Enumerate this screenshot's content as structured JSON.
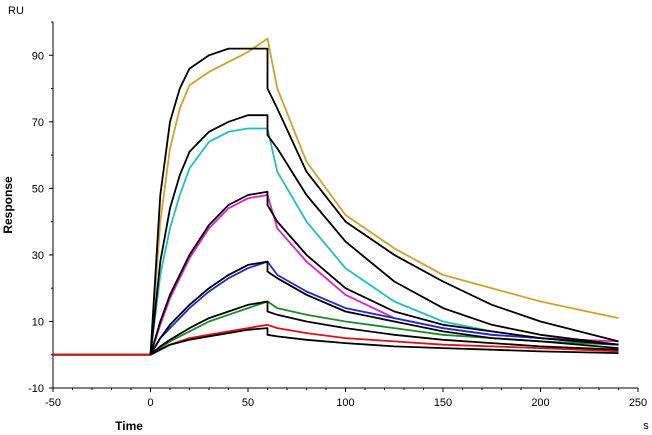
{
  "chart_data": {
    "type": "line",
    "title": "",
    "xlabel": "Time",
    "ylabel": "Response",
    "x_unit": "s",
    "y_unit": "RU",
    "xlim": [
      -50,
      250
    ],
    "ylim": [
      -10,
      100
    ],
    "x_ticks": [
      -50,
      0,
      50,
      100,
      150,
      200,
      250
    ],
    "y_ticks": [
      -10,
      10,
      30,
      50,
      70,
      90
    ],
    "grid": false,
    "legend": "none",
    "colors": {
      "gold": "#d4a02a",
      "cyan": "#20c0c0",
      "magenta": "#e020d0",
      "blue": "#1a2ad0",
      "green": "#1a8a2a",
      "red": "#e01010",
      "fit": "#000000"
    },
    "series": [
      {
        "color": "#d4a02a",
        "values": [
          [
            -50,
            0
          ],
          [
            0,
            0
          ],
          [
            5,
            40
          ],
          [
            10,
            62
          ],
          [
            15,
            74
          ],
          [
            20,
            81
          ],
          [
            30,
            85
          ],
          [
            40,
            88
          ],
          [
            50,
            91
          ],
          [
            60,
            95
          ],
          [
            65,
            80
          ],
          [
            80,
            58
          ],
          [
            100,
            42
          ],
          [
            125,
            32
          ],
          [
            150,
            24
          ],
          [
            175,
            20
          ],
          [
            200,
            16
          ],
          [
            240,
            11
          ]
        ]
      },
      {
        "color": "#20c0c0",
        "values": [
          [
            -50,
            0
          ],
          [
            0,
            0
          ],
          [
            5,
            24
          ],
          [
            10,
            38
          ],
          [
            15,
            48
          ],
          [
            20,
            56
          ],
          [
            30,
            64
          ],
          [
            40,
            67
          ],
          [
            50,
            68
          ],
          [
            60,
            68
          ],
          [
            65,
            55
          ],
          [
            80,
            40
          ],
          [
            100,
            26
          ],
          [
            125,
            16
          ],
          [
            150,
            10
          ],
          [
            175,
            7
          ],
          [
            200,
            5
          ],
          [
            240,
            3
          ]
        ]
      },
      {
        "color": "#e020d0",
        "values": [
          [
            -50,
            0
          ],
          [
            0,
            0
          ],
          [
            5,
            9
          ],
          [
            10,
            17
          ],
          [
            20,
            29
          ],
          [
            30,
            38
          ],
          [
            40,
            44
          ],
          [
            50,
            47
          ],
          [
            60,
            48
          ],
          [
            65,
            38
          ],
          [
            80,
            28
          ],
          [
            100,
            18
          ],
          [
            125,
            11
          ],
          [
            150,
            8
          ],
          [
            175,
            6
          ],
          [
            200,
            5
          ],
          [
            240,
            4
          ]
        ]
      },
      {
        "color": "#1a2ad0",
        "values": [
          [
            -50,
            0
          ],
          [
            0,
            0
          ],
          [
            5,
            5
          ],
          [
            10,
            8
          ],
          [
            20,
            14
          ],
          [
            30,
            19
          ],
          [
            40,
            23
          ],
          [
            50,
            26
          ],
          [
            60,
            28
          ],
          [
            65,
            24
          ],
          [
            80,
            19
          ],
          [
            100,
            14
          ],
          [
            125,
            11
          ],
          [
            150,
            8
          ],
          [
            175,
            6
          ],
          [
            200,
            5
          ],
          [
            240,
            3
          ]
        ]
      },
      {
        "color": "#1a8a2a",
        "values": [
          [
            -50,
            0
          ],
          [
            0,
            0
          ],
          [
            5,
            2
          ],
          [
            10,
            4
          ],
          [
            20,
            7
          ],
          [
            30,
            10
          ],
          [
            40,
            12
          ],
          [
            50,
            14
          ],
          [
            60,
            16
          ],
          [
            65,
            14
          ],
          [
            80,
            12
          ],
          [
            100,
            10
          ],
          [
            125,
            8
          ],
          [
            150,
            6
          ],
          [
            175,
            5
          ],
          [
            200,
            4
          ],
          [
            240,
            3
          ]
        ]
      },
      {
        "color": "#e01010",
        "values": [
          [
            -50,
            0
          ],
          [
            0,
            0
          ],
          [
            5,
            1.5
          ],
          [
            10,
            3
          ],
          [
            20,
            5
          ],
          [
            30,
            6
          ],
          [
            40,
            7
          ],
          [
            50,
            8
          ],
          [
            60,
            9
          ],
          [
            65,
            8
          ],
          [
            80,
            6.5
          ],
          [
            100,
            5
          ],
          [
            125,
            4
          ],
          [
            150,
            3
          ],
          [
            175,
            2.5
          ],
          [
            200,
            2
          ],
          [
            240,
            1
          ]
        ]
      }
    ],
    "fits": [
      {
        "values": [
          [
            0,
            0
          ],
          [
            5,
            48
          ],
          [
            10,
            70
          ],
          [
            15,
            80
          ],
          [
            20,
            86
          ],
          [
            30,
            90
          ],
          [
            40,
            92
          ],
          [
            50,
            92
          ],
          [
            60,
            92
          ],
          [
            60,
            80
          ],
          [
            65,
            74
          ],
          [
            80,
            55
          ],
          [
            100,
            40
          ],
          [
            125,
            30
          ],
          [
            150,
            22
          ],
          [
            175,
            15
          ],
          [
            200,
            10
          ],
          [
            240,
            4
          ]
        ]
      },
      {
        "values": [
          [
            0,
            0
          ],
          [
            5,
            28
          ],
          [
            10,
            44
          ],
          [
            15,
            54
          ],
          [
            20,
            61
          ],
          [
            30,
            67
          ],
          [
            40,
            70
          ],
          [
            50,
            72
          ],
          [
            60,
            72
          ],
          [
            60,
            66
          ],
          [
            65,
            62
          ],
          [
            80,
            48
          ],
          [
            100,
            34
          ],
          [
            125,
            22
          ],
          [
            150,
            14
          ],
          [
            175,
            9
          ],
          [
            200,
            6
          ],
          [
            240,
            3
          ]
        ]
      },
      {
        "values": [
          [
            0,
            0
          ],
          [
            5,
            10
          ],
          [
            10,
            18
          ],
          [
            20,
            30
          ],
          [
            30,
            39
          ],
          [
            40,
            45
          ],
          [
            50,
            48
          ],
          [
            60,
            49
          ],
          [
            60,
            45
          ],
          [
            65,
            40
          ],
          [
            80,
            30
          ],
          [
            100,
            20
          ],
          [
            125,
            13
          ],
          [
            150,
            9
          ],
          [
            175,
            7
          ],
          [
            200,
            5
          ],
          [
            240,
            3
          ]
        ]
      },
      {
        "values": [
          [
            0,
            0
          ],
          [
            5,
            5
          ],
          [
            10,
            9
          ],
          [
            20,
            15
          ],
          [
            30,
            20
          ],
          [
            40,
            24
          ],
          [
            50,
            27
          ],
          [
            60,
            28
          ],
          [
            60,
            25
          ],
          [
            65,
            23
          ],
          [
            80,
            18
          ],
          [
            100,
            13
          ],
          [
            125,
            10
          ],
          [
            150,
            7
          ],
          [
            175,
            5
          ],
          [
            200,
            4
          ],
          [
            240,
            2
          ]
        ]
      },
      {
        "values": [
          [
            0,
            0
          ],
          [
            5,
            2.5
          ],
          [
            10,
            4.5
          ],
          [
            20,
            8
          ],
          [
            30,
            11
          ],
          [
            40,
            13
          ],
          [
            50,
            15
          ],
          [
            60,
            16
          ],
          [
            60,
            13
          ],
          [
            65,
            12
          ],
          [
            80,
            10
          ],
          [
            100,
            8
          ],
          [
            125,
            6
          ],
          [
            150,
            4.5
          ],
          [
            175,
            3.5
          ],
          [
            200,
            2.5
          ],
          [
            240,
            1.5
          ]
        ]
      },
      {
        "values": [
          [
            0,
            0
          ],
          [
            5,
            1.5
          ],
          [
            10,
            3
          ],
          [
            20,
            4.5
          ],
          [
            30,
            5.5
          ],
          [
            40,
            6.5
          ],
          [
            50,
            7.5
          ],
          [
            60,
            8
          ],
          [
            60,
            6
          ],
          [
            65,
            5.5
          ],
          [
            80,
            4.5
          ],
          [
            100,
            3.5
          ],
          [
            125,
            2.5
          ],
          [
            150,
            2
          ],
          [
            175,
            1.5
          ],
          [
            200,
            1
          ],
          [
            240,
            0.5
          ]
        ]
      }
    ]
  }
}
